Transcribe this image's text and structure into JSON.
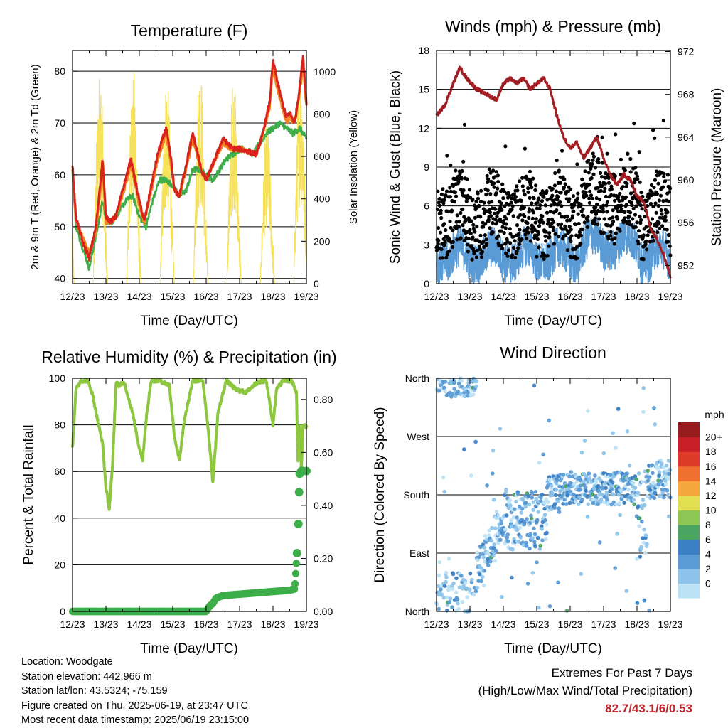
{
  "x_ticks": [
    "12/23",
    "13/23",
    "14/23",
    "15/23",
    "16/23",
    "17/23",
    "18/23",
    "19/23"
  ],
  "footer": {
    "location": "Location: Woodgate",
    "elevation": "Station elevation: 442.966 m",
    "latlon": "Station lat/lon: 43.5324; -75.159",
    "created": "Figure created on Thu, 2025-06-19, at 23:47 UTC",
    "recent": "Most recent data timestamp: 2025/06/19 23:15:00"
  },
  "extremes": {
    "title": "Extremes For Past 7 Days",
    "subtitle": "(High/Low/Max Wind/Total Precipitation)",
    "values": "82.7/43.1/6/0.53",
    "color": "#c0242c"
  },
  "chart_data": [
    {
      "id": "temperature",
      "type": "line",
      "title": "Temperature (F)",
      "xlabel": "Time (Day/UTC)",
      "ylabel": "2m & 9m T (Red, Orange) & 2m Td (Green)",
      "y2label": "Solar Insolation (Yellow)",
      "ylim": [
        39,
        84
      ],
      "y_ticks": [
        40,
        50,
        60,
        70,
        80
      ],
      "y2lim": [
        0,
        1100
      ],
      "y2_ticks": [
        0,
        200,
        400,
        600,
        800,
        1000
      ],
      "grid": true,
      "series": [
        {
          "color": "#d8221c",
          "axis": "left",
          "x": [
            0,
            0.1,
            0.3,
            0.5,
            0.7,
            0.9,
            1.0,
            1.15,
            1.3,
            1.5,
            1.75,
            2.0,
            2.15,
            2.3,
            2.55,
            2.8,
            2.95,
            3.05,
            3.2,
            3.4,
            3.6,
            3.75,
            3.85,
            4.0,
            4.2,
            4.5,
            4.8,
            5.0,
            5.5,
            5.7,
            5.9,
            6.0,
            6.2,
            6.4,
            6.5,
            6.65,
            6.8,
            6.9,
            7.0
          ],
          "y": [
            62,
            52,
            47,
            44,
            50,
            63,
            52,
            51,
            52,
            57,
            63,
            55,
            51,
            56,
            64,
            69,
            63,
            57,
            56,
            62,
            68,
            64,
            61,
            59,
            62,
            67,
            65,
            65,
            64,
            68,
            74,
            82,
            76,
            71,
            72,
            70,
            77,
            83,
            74
          ]
        },
        {
          "color": "#f2851f",
          "axis": "left",
          "x": [
            0,
            0.1,
            0.3,
            0.5,
            0.7,
            0.9,
            1.0,
            1.15,
            1.3,
            1.5,
            1.75,
            2.0,
            2.15,
            2.3,
            2.55,
            2.8,
            2.95,
            3.05,
            3.2,
            3.4,
            3.6,
            3.75,
            3.85,
            4.0,
            4.2,
            4.5,
            4.8,
            5.0,
            5.5,
            5.7,
            5.9,
            6.0,
            6.2,
            6.4,
            6.5,
            6.65,
            6.8,
            6.9,
            7.0
          ],
          "y": [
            61,
            51,
            48,
            45,
            49,
            61,
            51,
            51,
            52,
            56,
            62,
            54,
            51,
            55,
            63,
            68,
            62,
            57,
            56,
            61,
            67,
            63,
            61,
            59,
            62,
            66,
            65,
            65,
            64,
            68,
            73,
            80,
            75,
            70,
            71,
            70,
            76,
            81,
            73
          ]
        },
        {
          "color": "#3dae49",
          "axis": "left",
          "x": [
            0,
            0.1,
            0.3,
            0.5,
            0.7,
            0.9,
            1.0,
            1.2,
            1.4,
            1.6,
            1.8,
            2.0,
            2.2,
            2.4,
            2.6,
            2.8,
            3.0,
            3.2,
            3.4,
            3.6,
            3.8,
            4.0,
            4.2,
            4.4,
            4.6,
            4.8,
            5.0,
            5.2,
            5.4,
            5.6,
            5.8,
            6.0,
            6.2,
            6.4,
            6.6,
            6.8,
            7.0
          ],
          "y": [
            60,
            50,
            46,
            42,
            48,
            55,
            51,
            51,
            53,
            55,
            56,
            52,
            50,
            55,
            59,
            59,
            58,
            56,
            57,
            61,
            61,
            60,
            59,
            61,
            63,
            64,
            65,
            65,
            64,
            66,
            68,
            69,
            70,
            69,
            68,
            69,
            67
          ]
        },
        {
          "color": "#f5e15a",
          "axis": "right",
          "daily_peaks": [
            1020,
            1010,
            980,
            1040,
            990,
            760,
            1060,
            1000
          ]
        }
      ]
    },
    {
      "id": "winds",
      "type": "scatter",
      "title": "Winds (mph) & Pressure (mb)",
      "xlabel": "Time (Day/UTC)",
      "ylabel": "Sonic Wind & Gust (Blue, Black)",
      "y2label": "Station Pressure (Maroon)",
      "ylim": [
        0,
        18
      ],
      "y_ticks": [
        0,
        3,
        6,
        9,
        12,
        15,
        18
      ],
      "y2lim": [
        950.3,
        972.1
      ],
      "y2_ticks": [
        952,
        956,
        960,
        964,
        968,
        972
      ],
      "grid": true,
      "series": [
        {
          "color": "#5b9bd5",
          "axis": "left",
          "kind": "wind"
        },
        {
          "color": "#000000",
          "axis": "left",
          "kind": "gust"
        },
        {
          "color": "#a31e22",
          "axis": "right",
          "kind": "pressure",
          "x": [
            0,
            0.25,
            0.5,
            0.7,
            0.9,
            1.2,
            1.5,
            1.8,
            2.0,
            2.2,
            2.4,
            2.6,
            2.8,
            3.0,
            3.2,
            3.4,
            3.6,
            3.8,
            4.0,
            4.2,
            4.4,
            4.6,
            4.8,
            5.0,
            5.2,
            5.4,
            5.6,
            5.8,
            6.0,
            6.2,
            6.4,
            6.6,
            6.8,
            7.0
          ],
          "y": [
            966,
            967,
            969,
            970.5,
            969.5,
            968.5,
            968,
            967.5,
            969,
            969.5,
            969,
            969.5,
            968.5,
            969,
            969.5,
            968.5,
            966,
            964,
            963,
            963.5,
            962,
            963,
            964,
            962,
            960.5,
            959.5,
            960.5,
            960,
            958.5,
            958,
            955.5,
            954.5,
            953,
            951
          ]
        }
      ]
    },
    {
      "id": "humidity",
      "type": "line",
      "title": "Relative Humidity (%) & Precipitation (in)",
      "xlabel": "Time (Day/UTC)",
      "ylabel": "Percent & Total Rainfall",
      "ylim": [
        0,
        100
      ],
      "y_ticks": [
        0,
        20,
        40,
        60,
        80,
        100
      ],
      "y2lim": [
        0,
        0.88
      ],
      "y2_ticks": [
        0.0,
        0.2,
        0.4,
        0.6,
        0.8
      ],
      "grid": true,
      "series": [
        {
          "color": "#8dc63f",
          "axis": "left",
          "x": [
            0,
            0.1,
            0.25,
            0.45,
            0.6,
            0.75,
            0.9,
            1.0,
            1.1,
            1.2,
            1.3,
            1.4,
            1.55,
            1.8,
            2.0,
            2.1,
            2.2,
            2.35,
            2.6,
            2.9,
            3.05,
            3.2,
            3.35,
            3.6,
            3.9,
            4.05,
            4.2,
            4.35,
            4.6,
            4.9,
            5.2,
            5.5,
            5.8,
            6.0,
            6.1,
            6.3,
            6.55,
            6.7,
            6.75,
            6.8,
            6.85,
            6.9,
            7.0
          ],
          "y": [
            70,
            95,
            99,
            99,
            93,
            82,
            72,
            53,
            44,
            63,
            98,
            97,
            98,
            85,
            70,
            65,
            82,
            99,
            99,
            97,
            75,
            65,
            82,
            99,
            99,
            80,
            55,
            85,
            99,
            95,
            94,
            98,
            99,
            80,
            95,
            99,
            99,
            94,
            64,
            80,
            60,
            80,
            79
          ]
        },
        {
          "color": "#3dae49",
          "axis": "right",
          "kind": "precip",
          "x": [
            0,
            2.5,
            3.5,
            4.0,
            4.1,
            4.2,
            4.3,
            4.5,
            5.0,
            5.5,
            6.0,
            6.5,
            6.65,
            6.72,
            6.76,
            6.78,
            6.8,
            6.85,
            6.9,
            7.0
          ],
          "y": [
            0.0,
            0.0,
            0.0,
            0.0,
            0.02,
            0.03,
            0.05,
            0.06,
            0.065,
            0.07,
            0.075,
            0.08,
            0.085,
            0.22,
            0.33,
            0.45,
            0.52,
            0.53,
            0.53,
            0.53
          ]
        }
      ]
    },
    {
      "id": "direction",
      "type": "scatter",
      "title": "Wind Direction",
      "xlabel": "Time (Day/UTC)",
      "ylabel": "Direction (Colored By Speed)",
      "ylim": [
        0,
        360
      ],
      "y_ticks": [
        "North",
        "East",
        "South",
        "West",
        "North"
      ],
      "grid": true,
      "colorbar": {
        "unit": "mph",
        "labels": [
          "0",
          "2",
          "4",
          "6",
          "8",
          "10",
          "12",
          "14",
          "16",
          "18",
          "20+"
        ],
        "colors": [
          "#bde3f7",
          "#8ec4eb",
          "#5b9bd5",
          "#3b7fc4",
          "#4aa563",
          "#8cc653",
          "#e3df52",
          "#f6a83e",
          "#f07030",
          "#df3b2a",
          "#c81f27",
          "#981b1e"
        ]
      }
    }
  ]
}
